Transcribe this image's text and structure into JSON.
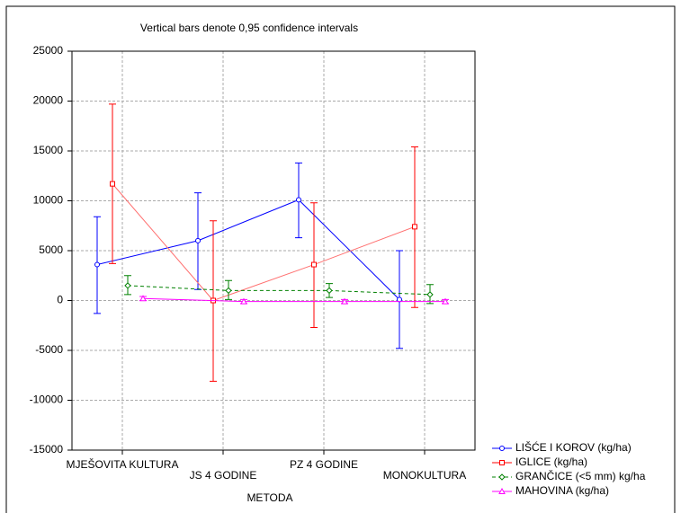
{
  "chart_data": {
    "type": "line",
    "title": "Vertical bars denote 0,95 confidence intervals",
    "x_label": "METODA",
    "categories": [
      "MJEŠOVITA KULTURA",
      "JS 4 GODINE",
      "PZ 4 GODINE",
      "MONOKULTURA"
    ],
    "series": [
      {
        "name": "LIŠĆE I KOROV (kg/ha)",
        "color": "#0000ff",
        "marker": "circle",
        "dashed": false,
        "values": [
          3600,
          6000,
          10100,
          100
        ],
        "ci_low": [
          -1300,
          1100,
          6300,
          -4800
        ],
        "ci_high": [
          8400,
          10800,
          13800,
          5000
        ]
      },
      {
        "name": "IGLICE (kg/ha)",
        "color": "#ff0000",
        "marker": "square",
        "dashed": false,
        "values": [
          11700,
          0,
          3600,
          7400
        ],
        "ci_low": [
          3700,
          -8100,
          -2700,
          -700
        ],
        "ci_high": [
          19700,
          8000,
          9800,
          15400
        ]
      },
      {
        "name": "GRANČICE (<5 mm) kg/ha",
        "color": "#008000",
        "marker": "diamond",
        "dashed": true,
        "values": [
          1500,
          1000,
          1000,
          600
        ],
        "ci_low": [
          600,
          100,
          300,
          -300
        ],
        "ci_high": [
          2500,
          2000,
          1700,
          1600
        ]
      },
      {
        "name": "MAHOVINA (kg/ha)",
        "color": "#ff00ff",
        "marker": "triangle",
        "dashed": false,
        "values": [
          200,
          -100,
          -100,
          -100
        ],
        "ci_low": [
          0,
          -300,
          -300,
          -300
        ],
        "ci_high": [
          400,
          100,
          100,
          100
        ]
      }
    ],
    "ylim": [
      -15000,
      25000
    ],
    "yticks": [
      -15000,
      -10000,
      -5000,
      0,
      5000,
      10000,
      15000,
      20000,
      25000
    ],
    "grid": true,
    "legend": "bottom-right"
  }
}
